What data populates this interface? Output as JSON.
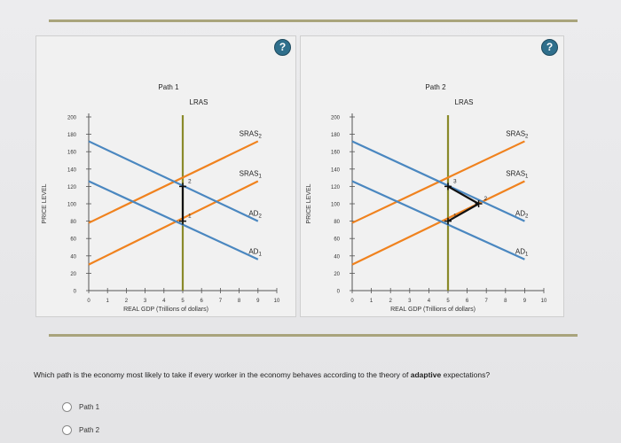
{
  "question": {
    "prefix": "Which path is the economy most likely to take if every worker in the economy behaves according to the theory of ",
    "bold": "adaptive",
    "suffix": " expectations?"
  },
  "options": [
    {
      "label": "Path 1"
    },
    {
      "label": "Path 2"
    }
  ],
  "help_label": "?",
  "colors": {
    "sras": "#f0821e",
    "ad": "#4a87c0",
    "lras": "#8a8a2a",
    "path": "#111111"
  },
  "chart_data": [
    {
      "type": "line",
      "title": "Path 1",
      "xlabel": "REAL GDP (Trillions of dollars)",
      "ylabel": "PRICE LEVEL",
      "xlim": [
        0,
        10
      ],
      "ylim": [
        0,
        200
      ],
      "x_ticks": [
        "0",
        "1",
        "2",
        "3",
        "4",
        "5",
        "6",
        "7",
        "8",
        "9",
        "10"
      ],
      "y_ticks": [
        "0",
        "20",
        "40",
        "60",
        "80",
        "100",
        "120",
        "140",
        "160",
        "180",
        "200"
      ],
      "lras": {
        "name": "LRAS",
        "x": 5
      },
      "series": [
        {
          "name": "SRAS",
          "sub": "2",
          "color": "orange",
          "points": [
            [
              0,
              78
            ],
            [
              9,
              172
            ]
          ]
        },
        {
          "name": "SRAS",
          "sub": "1",
          "color": "orange",
          "points": [
            [
              0,
              30
            ],
            [
              9,
              126
            ]
          ]
        },
        {
          "name": "AD",
          "sub": "2",
          "color": "blue",
          "points": [
            [
              0,
              172
            ],
            [
              9,
              80
            ]
          ]
        },
        {
          "name": "AD",
          "sub": "1",
          "color": "blue",
          "points": [
            [
              0,
              126
            ],
            [
              9,
              36
            ]
          ]
        }
      ],
      "path_points": [
        {
          "x": 5,
          "y": 80,
          "label": "1"
        },
        {
          "x": 5,
          "y": 120,
          "label": "2"
        }
      ]
    },
    {
      "type": "line",
      "title": "Path 2",
      "xlabel": "REAL GDP (Trillions of dollars)",
      "ylabel": "PRICE LEVEL",
      "xlim": [
        0,
        10
      ],
      "ylim": [
        0,
        200
      ],
      "x_ticks": [
        "0",
        "1",
        "2",
        "3",
        "4",
        "5",
        "6",
        "7",
        "8",
        "9",
        "10"
      ],
      "y_ticks": [
        "0",
        "20",
        "40",
        "60",
        "80",
        "100",
        "120",
        "140",
        "160",
        "180",
        "200"
      ],
      "lras": {
        "name": "LRAS",
        "x": 5
      },
      "series": [
        {
          "name": "SRAS",
          "sub": "2",
          "color": "orange",
          "points": [
            [
              0,
              78
            ],
            [
              9,
              172
            ]
          ]
        },
        {
          "name": "SRAS",
          "sub": "1",
          "color": "orange",
          "points": [
            [
              0,
              30
            ],
            [
              9,
              126
            ]
          ]
        },
        {
          "name": "AD",
          "sub": "2",
          "color": "blue",
          "points": [
            [
              0,
              172
            ],
            [
              9,
              80
            ]
          ]
        },
        {
          "name": "AD",
          "sub": "1",
          "color": "blue",
          "points": [
            [
              0,
              126
            ],
            [
              9,
              36
            ]
          ]
        }
      ],
      "path_points": [
        {
          "x": 5,
          "y": 80,
          "label": "1"
        },
        {
          "x": 6.6,
          "y": 100,
          "label": "2"
        },
        {
          "x": 5,
          "y": 120,
          "label": "3"
        }
      ]
    }
  ]
}
